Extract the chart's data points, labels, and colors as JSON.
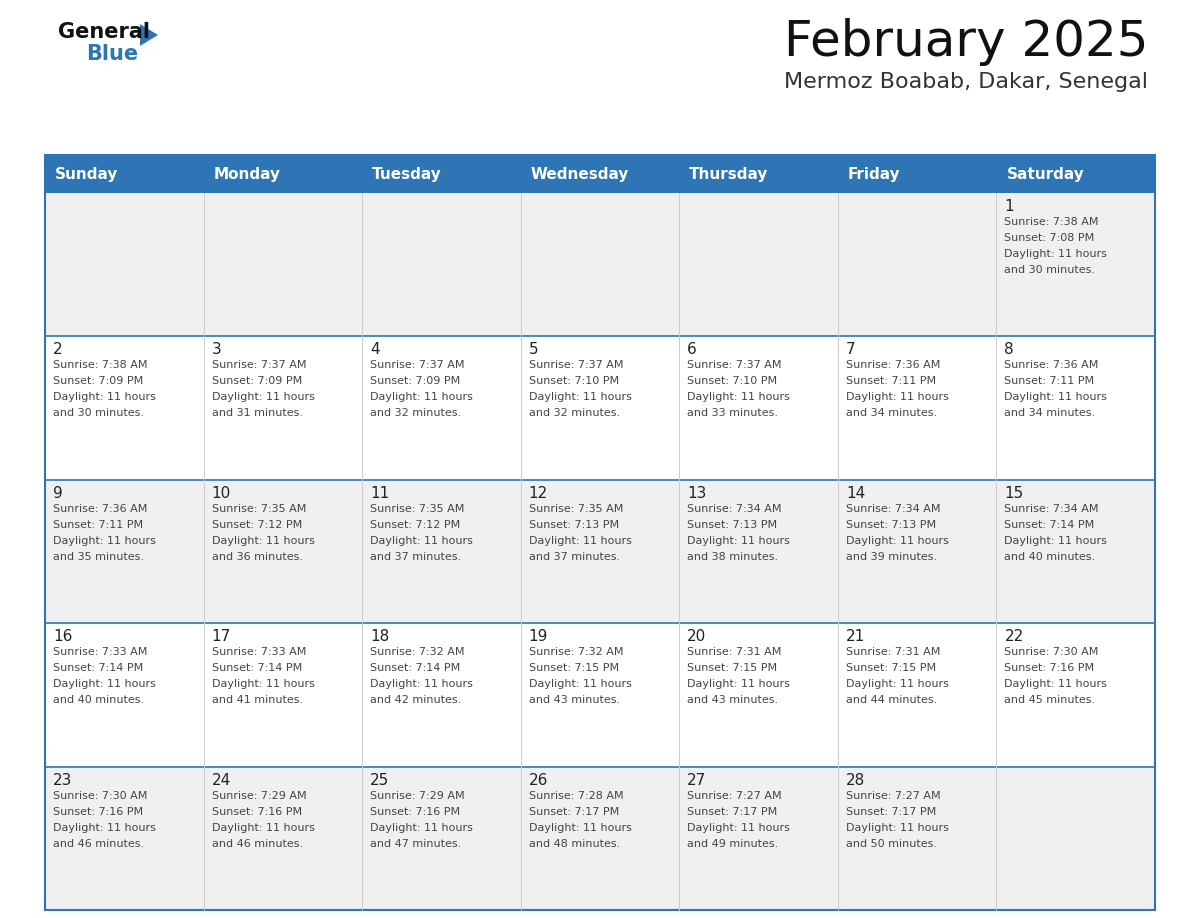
{
  "title": "February 2025",
  "subtitle": "Mermoz Boabab, Dakar, Senegal",
  "header_color": "#2E75B6",
  "header_text_color": "#FFFFFF",
  "cell_bg_white": "#FFFFFF",
  "cell_bg_gray": "#F0F0F0",
  "border_color": "#2E75B6",
  "divider_color": "#AAAAAA",
  "day_names": [
    "Sunday",
    "Monday",
    "Tuesday",
    "Wednesday",
    "Thursday",
    "Friday",
    "Saturday"
  ],
  "days": [
    {
      "day": 1,
      "col": 6,
      "row": 0,
      "sunrise": "7:38 AM",
      "sunset": "7:08 PM",
      "daylight_hours": 11,
      "daylight_minutes": 30
    },
    {
      "day": 2,
      "col": 0,
      "row": 1,
      "sunrise": "7:38 AM",
      "sunset": "7:09 PM",
      "daylight_hours": 11,
      "daylight_minutes": 30
    },
    {
      "day": 3,
      "col": 1,
      "row": 1,
      "sunrise": "7:37 AM",
      "sunset": "7:09 PM",
      "daylight_hours": 11,
      "daylight_minutes": 31
    },
    {
      "day": 4,
      "col": 2,
      "row": 1,
      "sunrise": "7:37 AM",
      "sunset": "7:09 PM",
      "daylight_hours": 11,
      "daylight_minutes": 32
    },
    {
      "day": 5,
      "col": 3,
      "row": 1,
      "sunrise": "7:37 AM",
      "sunset": "7:10 PM",
      "daylight_hours": 11,
      "daylight_minutes": 32
    },
    {
      "day": 6,
      "col": 4,
      "row": 1,
      "sunrise": "7:37 AM",
      "sunset": "7:10 PM",
      "daylight_hours": 11,
      "daylight_minutes": 33
    },
    {
      "day": 7,
      "col": 5,
      "row": 1,
      "sunrise": "7:36 AM",
      "sunset": "7:11 PM",
      "daylight_hours": 11,
      "daylight_minutes": 34
    },
    {
      "day": 8,
      "col": 6,
      "row": 1,
      "sunrise": "7:36 AM",
      "sunset": "7:11 PM",
      "daylight_hours": 11,
      "daylight_minutes": 34
    },
    {
      "day": 9,
      "col": 0,
      "row": 2,
      "sunrise": "7:36 AM",
      "sunset": "7:11 PM",
      "daylight_hours": 11,
      "daylight_minutes": 35
    },
    {
      "day": 10,
      "col": 1,
      "row": 2,
      "sunrise": "7:35 AM",
      "sunset": "7:12 PM",
      "daylight_hours": 11,
      "daylight_minutes": 36
    },
    {
      "day": 11,
      "col": 2,
      "row": 2,
      "sunrise": "7:35 AM",
      "sunset": "7:12 PM",
      "daylight_hours": 11,
      "daylight_minutes": 37
    },
    {
      "day": 12,
      "col": 3,
      "row": 2,
      "sunrise": "7:35 AM",
      "sunset": "7:13 PM",
      "daylight_hours": 11,
      "daylight_minutes": 37
    },
    {
      "day": 13,
      "col": 4,
      "row": 2,
      "sunrise": "7:34 AM",
      "sunset": "7:13 PM",
      "daylight_hours": 11,
      "daylight_minutes": 38
    },
    {
      "day": 14,
      "col": 5,
      "row": 2,
      "sunrise": "7:34 AM",
      "sunset": "7:13 PM",
      "daylight_hours": 11,
      "daylight_minutes": 39
    },
    {
      "day": 15,
      "col": 6,
      "row": 2,
      "sunrise": "7:34 AM",
      "sunset": "7:14 PM",
      "daylight_hours": 11,
      "daylight_minutes": 40
    },
    {
      "day": 16,
      "col": 0,
      "row": 3,
      "sunrise": "7:33 AM",
      "sunset": "7:14 PM",
      "daylight_hours": 11,
      "daylight_minutes": 40
    },
    {
      "day": 17,
      "col": 1,
      "row": 3,
      "sunrise": "7:33 AM",
      "sunset": "7:14 PM",
      "daylight_hours": 11,
      "daylight_minutes": 41
    },
    {
      "day": 18,
      "col": 2,
      "row": 3,
      "sunrise": "7:32 AM",
      "sunset": "7:14 PM",
      "daylight_hours": 11,
      "daylight_minutes": 42
    },
    {
      "day": 19,
      "col": 3,
      "row": 3,
      "sunrise": "7:32 AM",
      "sunset": "7:15 PM",
      "daylight_hours": 11,
      "daylight_minutes": 43
    },
    {
      "day": 20,
      "col": 4,
      "row": 3,
      "sunrise": "7:31 AM",
      "sunset": "7:15 PM",
      "daylight_hours": 11,
      "daylight_minutes": 43
    },
    {
      "day": 21,
      "col": 5,
      "row": 3,
      "sunrise": "7:31 AM",
      "sunset": "7:15 PM",
      "daylight_hours": 11,
      "daylight_minutes": 44
    },
    {
      "day": 22,
      "col": 6,
      "row": 3,
      "sunrise": "7:30 AM",
      "sunset": "7:16 PM",
      "daylight_hours": 11,
      "daylight_minutes": 45
    },
    {
      "day": 23,
      "col": 0,
      "row": 4,
      "sunrise": "7:30 AM",
      "sunset": "7:16 PM",
      "daylight_hours": 11,
      "daylight_minutes": 46
    },
    {
      "day": 24,
      "col": 1,
      "row": 4,
      "sunrise": "7:29 AM",
      "sunset": "7:16 PM",
      "daylight_hours": 11,
      "daylight_minutes": 46
    },
    {
      "day": 25,
      "col": 2,
      "row": 4,
      "sunrise": "7:29 AM",
      "sunset": "7:16 PM",
      "daylight_hours": 11,
      "daylight_minutes": 47
    },
    {
      "day": 26,
      "col": 3,
      "row": 4,
      "sunrise": "7:28 AM",
      "sunset": "7:17 PM",
      "daylight_hours": 11,
      "daylight_minutes": 48
    },
    {
      "day": 27,
      "col": 4,
      "row": 4,
      "sunrise": "7:27 AM",
      "sunset": "7:17 PM",
      "daylight_hours": 11,
      "daylight_minutes": 49
    },
    {
      "day": 28,
      "col": 5,
      "row": 4,
      "sunrise": "7:27 AM",
      "sunset": "7:17 PM",
      "daylight_hours": 11,
      "daylight_minutes": 50
    }
  ],
  "num_rows": 5,
  "num_cols": 7,
  "logo_arrow_color": "#2E75B6",
  "title_fontsize": 36,
  "subtitle_fontsize": 16,
  "header_fontsize": 11,
  "daynum_fontsize": 11,
  "info_fontsize": 8
}
